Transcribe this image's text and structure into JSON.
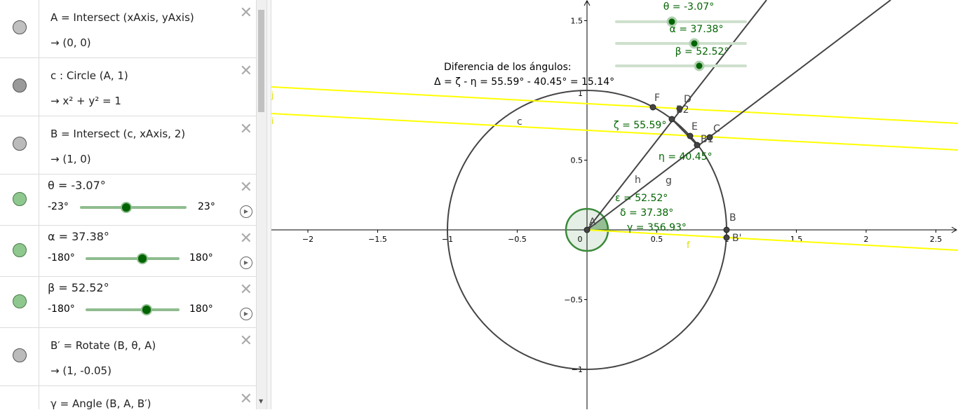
{
  "algebra": {
    "rows": [
      {
        "definition": "A = Intersect (xAxis, yAxis)",
        "value": "→  (0, 0)",
        "dot": "#c0c0c0"
      },
      {
        "definition": "c : Circle (A, 1)",
        "value": "→  x² + y² = 1",
        "dot": "#9a9a9a"
      },
      {
        "definition": "B = Intersect (c, xAxis, 2)",
        "value": "→  (1, 0)",
        "dot": "#c0c0c0"
      },
      {
        "definition": "B′ = Rotate (B, θ, A)",
        "value": "→  (1, -0.05)",
        "dot": "#c0c0c0"
      },
      {
        "definition": "γ = Angle (B, A, B′)",
        "value": "",
        "dot": "#c0c0c0"
      }
    ],
    "sliders": [
      {
        "label": "θ = -3.07°",
        "min": "-23°",
        "max": "23°",
        "fraction": 0.433
      },
      {
        "label": "α = 37.38°",
        "min": "-180°",
        "max": "180°",
        "fraction": 0.604
      },
      {
        "label": "β = 52.52°",
        "min": "-180°",
        "max": "180°",
        "fraction": 0.646
      }
    ],
    "slider_dot": "#8fc88f"
  },
  "graphics": {
    "x_ticks": [
      "−2",
      "−1.5",
      "−1",
      "−0.5",
      "0",
      "0.5",
      "1",
      "1.5",
      "2",
      "2.5"
    ],
    "y_ticks": [
      "1.5",
      "1",
      "0.5",
      "−0.5",
      "−1"
    ],
    "text_title": "Diferencia de los ángulos:",
    "text_formula": "Δ = ζ - η = 55.59° - 40.45° = 15.14°",
    "top_sliders": [
      "θ = -3.07°",
      "α = 37.38°",
      "β = 52.52°"
    ],
    "labels": {
      "A": "A",
      "B": "B",
      "B_prime": "B'",
      "C": "C",
      "D": "D",
      "E": "E",
      "F": "F",
      "B1": "B1",
      "B2": "B2",
      "c": "c",
      "h": "h",
      "g": "g",
      "f": "f",
      "i": "i",
      "j": "j"
    },
    "angles": {
      "zeta": "ζ = 55.59°",
      "eta": "η = 40.45°",
      "epsilon": "ε = 52.52°",
      "delta": "δ = 37.38°",
      "gamma": "γ = 356.93°"
    },
    "colors": {
      "green": "#006400",
      "yellow": "#ffff00",
      "line": "#444444"
    }
  }
}
